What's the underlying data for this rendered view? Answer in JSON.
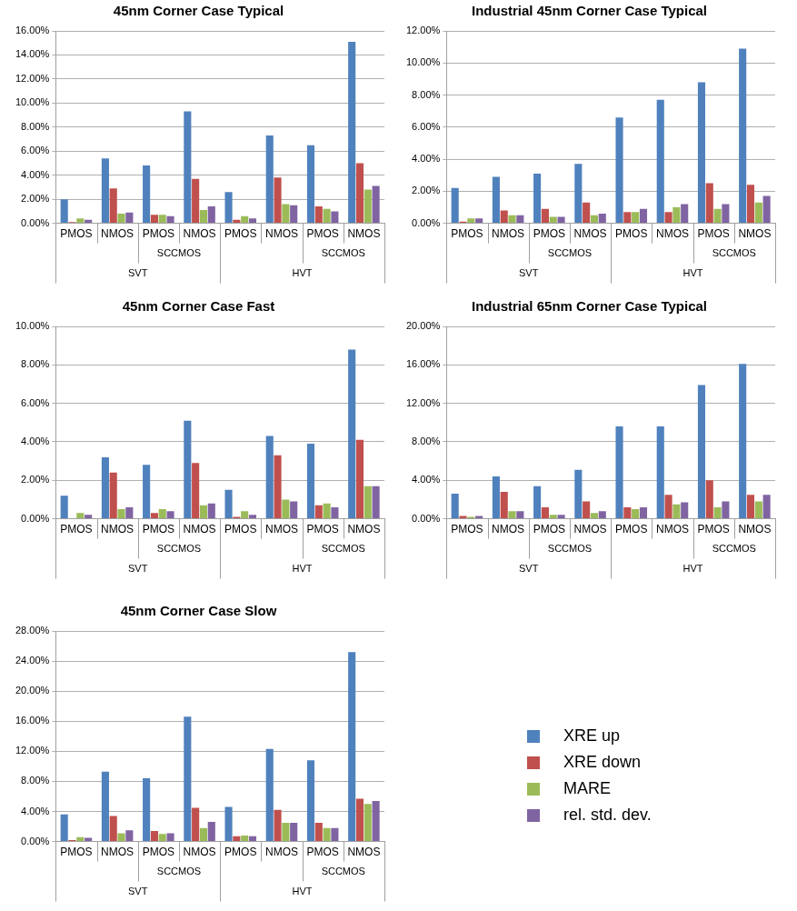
{
  "chart_data": [
    {
      "type": "bar",
      "title": "45nm Corner Case Typical",
      "categories": [
        "PMOS",
        "NMOS",
        "PMOS",
        "NMOS",
        "PMOS",
        "NMOS",
        "PMOS",
        "NMOS"
      ],
      "annotations": [
        "SCCMOS",
        "SCCMOS",
        "SVT",
        "HVT"
      ],
      "grid": "y",
      "ylim": [
        0,
        16
      ],
      "yticks": [
        {
          "value": 0,
          "label": "0.00%"
        },
        {
          "value": 2,
          "label": "2.00%"
        },
        {
          "value": 4,
          "label": "4.00%"
        },
        {
          "value": 6,
          "label": "6.00%"
        },
        {
          "value": 8,
          "label": "8.00%"
        },
        {
          "value": 10,
          "label": "10.00%"
        },
        {
          "value": 12,
          "label": "12.00%"
        },
        {
          "value": 14,
          "label": "14.00%"
        },
        {
          "value": 16,
          "label": "16.00%"
        }
      ],
      "series": [
        {
          "color": "#4f81bd",
          "values": [
            2.0,
            5.4,
            4.8,
            9.3,
            2.6,
            7.3,
            6.5,
            15.1
          ]
        },
        {
          "color": "#c0504d",
          "values": [
            0.1,
            2.9,
            0.7,
            3.7,
            0.3,
            3.8,
            1.4,
            5.0
          ]
        },
        {
          "color": "#9bbb59",
          "values": [
            0.4,
            0.8,
            0.7,
            1.1,
            0.6,
            1.6,
            1.2,
            2.8
          ]
        },
        {
          "color": "#8064a2",
          "values": [
            0.3,
            0.9,
            0.6,
            1.4,
            0.4,
            1.5,
            1.0,
            3.1
          ]
        }
      ]
    },
    {
      "type": "bar",
      "title": "Industrial 45nm Corner Case Typical",
      "categories": [
        "PMOS",
        "NMOS",
        "PMOS",
        "NMOS",
        "PMOS",
        "NMOS",
        "PMOS",
        "NMOS"
      ],
      "annotations": [
        "SCCMOS",
        "SCCMOS",
        "SVT",
        "HVT"
      ],
      "grid": "y",
      "ylim": [
        0,
        12
      ],
      "yticks": [
        {
          "value": 0,
          "label": "0.00%"
        },
        {
          "value": 2,
          "label": "2.00%"
        },
        {
          "value": 4,
          "label": "4.00%"
        },
        {
          "value": 6,
          "label": "6.00%"
        },
        {
          "value": 8,
          "label": "8.00%"
        },
        {
          "value": 10,
          "label": "10.00%"
        },
        {
          "value": 12,
          "label": "12.00%"
        }
      ],
      "series": [
        {
          "color": "#4f81bd",
          "values": [
            2.2,
            2.9,
            3.1,
            3.7,
            6.6,
            7.7,
            8.8,
            10.9
          ]
        },
        {
          "color": "#c0504d",
          "values": [
            0.1,
            0.8,
            0.9,
            1.3,
            0.7,
            0.7,
            2.5,
            2.4
          ]
        },
        {
          "color": "#9bbb59",
          "values": [
            0.3,
            0.5,
            0.4,
            0.5,
            0.7,
            1.0,
            0.9,
            1.3
          ]
        },
        {
          "color": "#8064a2",
          "values": [
            0.3,
            0.5,
            0.4,
            0.6,
            0.9,
            1.2,
            1.2,
            1.7
          ]
        }
      ]
    },
    {
      "type": "bar",
      "title": "45nm Corner Case Fast",
      "categories": [
        "PMOS",
        "NMOS",
        "PMOS",
        "NMOS",
        "PMOS",
        "NMOS",
        "PMOS",
        "NMOS"
      ],
      "annotations": [
        "SCCMOS",
        "SCCMOS",
        "SVT",
        "HVT"
      ],
      "grid": "y",
      "ylim": [
        0,
        10
      ],
      "yticks": [
        {
          "value": 0,
          "label": "0.00%"
        },
        {
          "value": 2,
          "label": "2.00%"
        },
        {
          "value": 4,
          "label": "4.00%"
        },
        {
          "value": 6,
          "label": "6.00%"
        },
        {
          "value": 8,
          "label": "8.00%"
        },
        {
          "value": 10,
          "label": "10.00%"
        }
      ],
      "series": [
        {
          "color": "#4f81bd",
          "values": [
            1.2,
            3.2,
            2.8,
            5.1,
            1.5,
            4.3,
            3.9,
            8.8
          ]
        },
        {
          "color": "#c0504d",
          "values": [
            0.0,
            2.4,
            0.3,
            2.9,
            0.1,
            3.3,
            0.7,
            4.1
          ]
        },
        {
          "color": "#9bbb59",
          "values": [
            0.3,
            0.5,
            0.5,
            0.7,
            0.4,
            1.0,
            0.8,
            1.7
          ]
        },
        {
          "color": "#8064a2",
          "values": [
            0.2,
            0.6,
            0.4,
            0.8,
            0.2,
            0.9,
            0.6,
            1.7
          ]
        }
      ]
    },
    {
      "type": "bar",
      "title": "Industrial 65nm Corner Case Typical",
      "categories": [
        "PMOS",
        "NMOS",
        "PMOS",
        "NMOS",
        "PMOS",
        "NMOS",
        "PMOS",
        "NMOS"
      ],
      "annotations": [
        "SCCMOS",
        "SCCMOS",
        "SVT",
        "HVT"
      ],
      "grid": "y",
      "ylim": [
        0,
        20
      ],
      "yticks": [
        {
          "value": 0,
          "label": "0.00%"
        },
        {
          "value": 4,
          "label": "4.00%"
        },
        {
          "value": 8,
          "label": "8.00%"
        },
        {
          "value": 12,
          "label": "12.00%"
        },
        {
          "value": 16,
          "label": "16.00%"
        },
        {
          "value": 20,
          "label": "20.00%"
        }
      ],
      "series": [
        {
          "color": "#4f81bd",
          "values": [
            2.6,
            4.4,
            3.4,
            5.1,
            9.6,
            9.6,
            13.9,
            16.1
          ]
        },
        {
          "color": "#c0504d",
          "values": [
            0.3,
            2.8,
            1.2,
            1.8,
            1.2,
            2.5,
            4.0,
            2.5
          ]
        },
        {
          "color": "#9bbb59",
          "values": [
            0.2,
            0.8,
            0.4,
            0.6,
            1.0,
            1.5,
            1.2,
            1.8
          ]
        },
        {
          "color": "#8064a2",
          "values": [
            0.3,
            0.8,
            0.4,
            0.8,
            1.2,
            1.7,
            1.8,
            2.5
          ]
        }
      ]
    },
    {
      "type": "bar",
      "title": "45nm Corner Case Slow",
      "categories": [
        "PMOS",
        "NMOS",
        "PMOS",
        "NMOS",
        "PMOS",
        "NMOS",
        "PMOS",
        "NMOS"
      ],
      "annotations": [
        "SCCMOS",
        "SCCMOS",
        "SVT",
        "HVT"
      ],
      "grid": "y",
      "legend": "right",
      "ylim": [
        0,
        28
      ],
      "yticks": [
        {
          "value": 0,
          "label": "0.00%"
        },
        {
          "value": 4,
          "label": "4.00%"
        },
        {
          "value": 8,
          "label": "8.00%"
        },
        {
          "value": 12,
          "label": "12.00%"
        },
        {
          "value": 16,
          "label": "16.00%"
        },
        {
          "value": 20,
          "label": "20.00%"
        },
        {
          "value": 24,
          "label": "24.00%"
        },
        {
          "value": 28,
          "label": "28.00%"
        }
      ],
      "series": [
        {
          "name": "XRE up",
          "color": "#4f81bd",
          "values": [
            3.6,
            9.3,
            8.4,
            16.6,
            4.6,
            12.3,
            10.8,
            25.2
          ]
        },
        {
          "name": "XRE down",
          "color": "#c0504d",
          "values": [
            0.2,
            3.4,
            1.4,
            4.5,
            0.7,
            4.2,
            2.5,
            5.7
          ]
        },
        {
          "name": "MARE",
          "color": "#9bbb59",
          "values": [
            0.6,
            1.1,
            1.0,
            1.8,
            0.8,
            2.5,
            1.8,
            5.0
          ]
        },
        {
          "name": "rel. std. dev.",
          "color": "#8064a2",
          "values": [
            0.5,
            1.5,
            1.1,
            2.6,
            0.7,
            2.5,
            1.8,
            5.4
          ]
        }
      ]
    }
  ]
}
